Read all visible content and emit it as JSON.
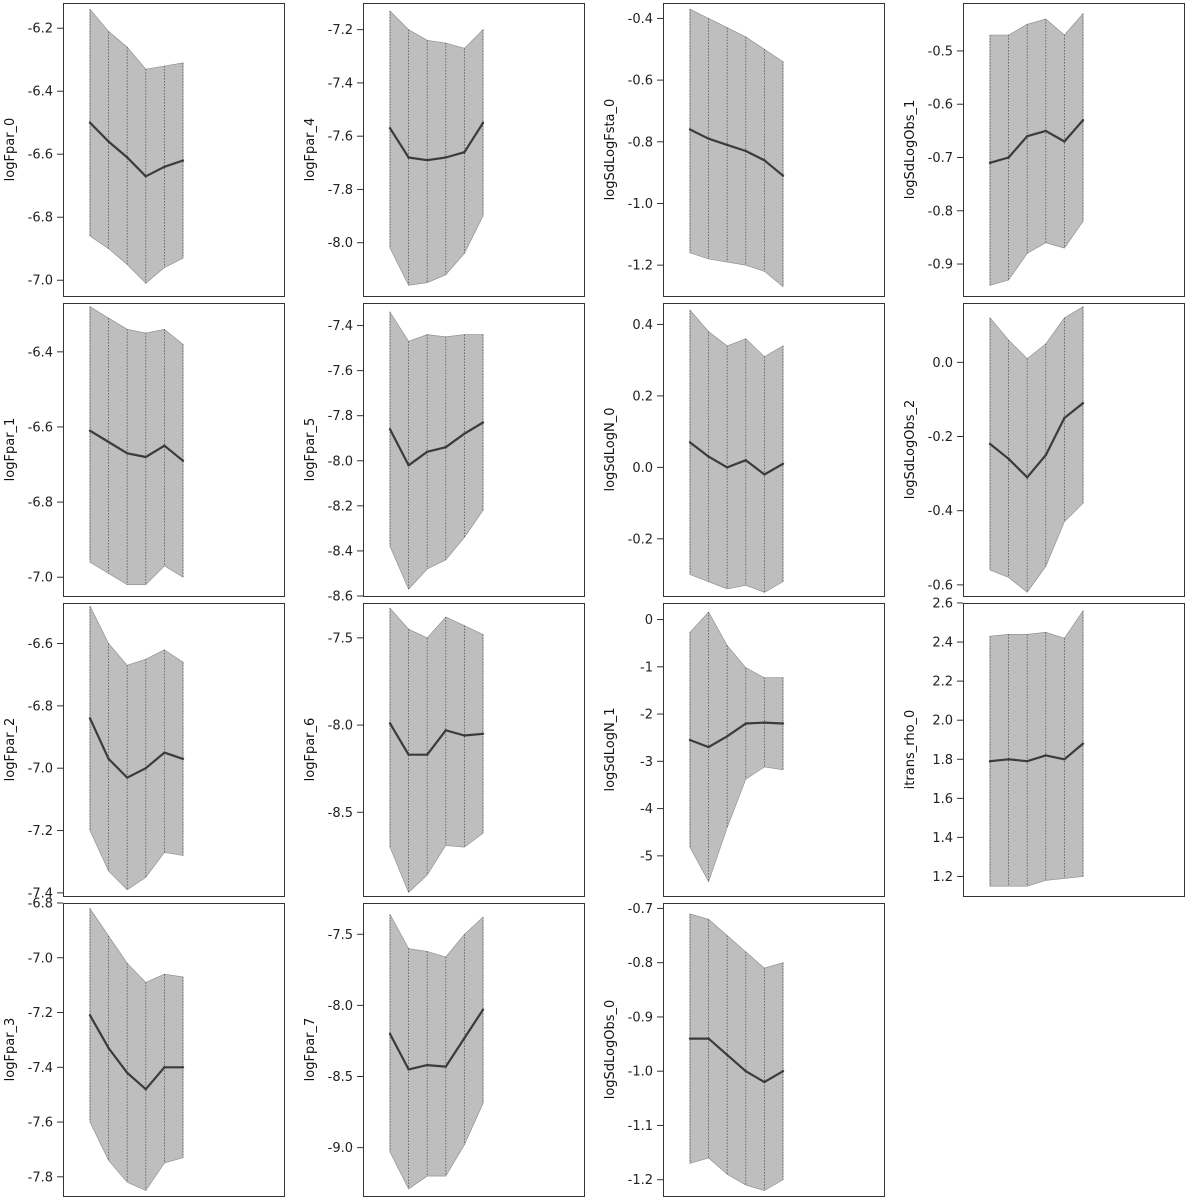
{
  "chart_data": [
    {
      "type": "area",
      "ylabel": "logFpar_0",
      "ylim": [
        -7.05,
        -6.12
      ],
      "yticks": [
        -6.2,
        -6.4,
        -6.6,
        -6.8,
        -7.0
      ],
      "tick_labels": [
        "-6.2",
        "-6.4",
        "-6.6",
        "-6.8",
        "-7.0"
      ],
      "series": [
        {
          "values": [
            -6.5,
            -6.56,
            -6.61,
            -6.67,
            -6.64,
            -6.62
          ]
        },
        {
          "values": [
            -6.14,
            -6.21,
            -6.26,
            -6.33,
            -6.32,
            -6.31
          ]
        },
        {
          "values": [
            -6.86,
            -6.9,
            -6.95,
            -7.01,
            -6.96,
            -6.93
          ]
        }
      ]
    },
    {
      "type": "area",
      "ylabel": "logFpar_1",
      "ylim": [
        -7.05,
        -6.27
      ],
      "yticks": [
        -6.4,
        -6.6,
        -6.8,
        -7.0
      ],
      "tick_labels": [
        "-6.4",
        "-6.6",
        "-6.8",
        "-7.0"
      ],
      "series": [
        {
          "values": [
            -6.61,
            -6.64,
            -6.67,
            -6.68,
            -6.65,
            -6.69
          ]
        },
        {
          "values": [
            -6.28,
            -6.31,
            -6.34,
            -6.35,
            -6.34,
            -6.38
          ]
        },
        {
          "values": [
            -6.96,
            -6.99,
            -7.02,
            -7.02,
            -6.97,
            -7.0
          ]
        }
      ]
    },
    {
      "type": "area",
      "ylabel": "logFpar_2",
      "ylim": [
        -7.41,
        -6.47
      ],
      "yticks": [
        -6.6,
        -6.8,
        -7.0,
        -7.2,
        -7.4
      ],
      "tick_labels": [
        "-6.6",
        "-6.8",
        "-7.0",
        "-7.2",
        "-7.4"
      ],
      "series": [
        {
          "values": [
            -6.84,
            -6.97,
            -7.03,
            -7.0,
            -6.95,
            -6.97
          ]
        },
        {
          "values": [
            -6.48,
            -6.6,
            -6.67,
            -6.65,
            -6.62,
            -6.66
          ]
        },
        {
          "values": [
            -7.2,
            -7.33,
            -7.39,
            -7.35,
            -7.27,
            -7.28
          ]
        }
      ]
    },
    {
      "type": "area",
      "ylabel": "logFpar_3",
      "ylim": [
        -7.87,
        -6.8
      ],
      "yticks": [
        -6.8,
        -7.0,
        -7.2,
        -7.4,
        -7.6,
        -7.8
      ],
      "tick_labels": [
        "-6.8",
        "-7.0",
        "-7.2",
        "-7.4",
        "-7.6",
        "-7.8"
      ],
      "series": [
        {
          "values": [
            -7.21,
            -7.33,
            -7.42,
            -7.48,
            -7.4,
            -7.4
          ]
        },
        {
          "values": [
            -6.82,
            -6.92,
            -7.02,
            -7.09,
            -7.06,
            -7.07
          ]
        },
        {
          "values": [
            -7.6,
            -7.74,
            -7.82,
            -7.85,
            -7.75,
            -7.73
          ]
        }
      ]
    },
    {
      "type": "area",
      "ylabel": "logFpar_4",
      "ylim": [
        -8.2,
        -7.1
      ],
      "yticks": [
        -7.2,
        -7.4,
        -7.6,
        -7.8,
        -8.0
      ],
      "tick_labels": [
        "-7.2",
        "-7.4",
        "-7.6",
        "-7.8",
        "-8.0"
      ],
      "series": [
        {
          "values": [
            -7.57,
            -7.68,
            -7.69,
            -7.68,
            -7.66,
            -7.55
          ]
        },
        {
          "values": [
            -7.13,
            -7.2,
            -7.24,
            -7.25,
            -7.27,
            -7.2
          ]
        },
        {
          "values": [
            -8.02,
            -8.16,
            -8.15,
            -8.12,
            -8.04,
            -7.9
          ]
        }
      ]
    },
    {
      "type": "area",
      "ylabel": "logFpar_5",
      "ylim": [
        -8.6,
        -7.3
      ],
      "yticks": [
        -7.4,
        -7.6,
        -7.8,
        -8.0,
        -8.2,
        -8.4,
        -8.6
      ],
      "tick_labels": [
        "-7.4",
        "-7.6",
        "-7.8",
        "-8.0",
        "-8.2",
        "-8.4",
        "-8.6"
      ],
      "series": [
        {
          "values": [
            -7.86,
            -8.02,
            -7.96,
            -7.94,
            -7.88,
            -7.83
          ]
        },
        {
          "values": [
            -7.34,
            -7.47,
            -7.44,
            -7.45,
            -7.44,
            -7.44
          ]
        },
        {
          "values": [
            -8.38,
            -8.57,
            -8.48,
            -8.44,
            -8.34,
            -8.22
          ]
        }
      ]
    },
    {
      "type": "area",
      "ylabel": "logFpar_6",
      "ylim": [
        -8.98,
        -7.3
      ],
      "yticks": [
        -7.5,
        -8.0,
        -8.5
      ],
      "tick_labels": [
        "-7.5",
        "-8.0",
        "-8.5"
      ],
      "series": [
        {
          "values": [
            -7.99,
            -8.17,
            -8.17,
            -8.03,
            -8.06,
            -8.05
          ]
        },
        {
          "values": [
            -7.33,
            -7.45,
            -7.5,
            -7.38,
            -7.43,
            -7.48
          ]
        },
        {
          "values": [
            -8.7,
            -8.96,
            -8.86,
            -8.69,
            -8.7,
            -8.62
          ]
        }
      ]
    },
    {
      "type": "area",
      "ylabel": "logFpar_7",
      "ylim": [
        -9.34,
        -7.28
      ],
      "yticks": [
        -7.5,
        -8.0,
        -8.5,
        -9.0
      ],
      "tick_labels": [
        "-7.5",
        "-8.0",
        "-8.5",
        "-9.0"
      ],
      "series": [
        {
          "values": [
            -8.2,
            -8.45,
            -8.42,
            -8.43,
            -8.23,
            -8.03
          ]
        },
        {
          "values": [
            -7.36,
            -7.6,
            -7.62,
            -7.66,
            -7.5,
            -7.38
          ]
        },
        {
          "values": [
            -9.03,
            -9.29,
            -9.2,
            -9.2,
            -8.98,
            -8.69
          ]
        }
      ]
    },
    {
      "type": "area",
      "ylabel": "logSdLogFsta_0",
      "ylim": [
        -1.3,
        -0.35
      ],
      "yticks": [
        -0.4,
        -0.6,
        -0.8,
        -1.0,
        -1.2
      ],
      "tick_labels": [
        "-0.4",
        "-0.6",
        "-0.8",
        "-1.0",
        "-1.2"
      ],
      "series": [
        {
          "values": [
            -0.76,
            -0.79,
            -0.81,
            -0.83,
            -0.86,
            -0.91
          ]
        },
        {
          "values": [
            -0.37,
            -0.4,
            -0.43,
            -0.46,
            -0.5,
            -0.54
          ]
        },
        {
          "values": [
            -1.16,
            -1.18,
            -1.19,
            -1.2,
            -1.22,
            -1.27
          ]
        }
      ]
    },
    {
      "type": "area",
      "ylabel": "logSdLogN_0",
      "ylim": [
        -0.36,
        0.46
      ],
      "yticks": [
        0.4,
        0.2,
        0.0,
        -0.2
      ],
      "tick_labels": [
        "0.4",
        "0.2",
        "0.0",
        "-0.2"
      ],
      "series": [
        {
          "values": [
            0.07,
            0.03,
            0.0,
            0.02,
            -0.02,
            0.01
          ]
        },
        {
          "values": [
            0.44,
            0.38,
            0.34,
            0.36,
            0.31,
            0.34
          ]
        },
        {
          "values": [
            -0.3,
            -0.32,
            -0.34,
            -0.33,
            -0.35,
            -0.32
          ]
        }
      ]
    },
    {
      "type": "area",
      "ylabel": "logSdLogN_1",
      "ylim": [
        -5.85,
        0.35
      ],
      "yticks": [
        0,
        -1,
        -2,
        -3,
        -4,
        -5
      ],
      "tick_labels": [
        "0",
        "-1",
        "-2",
        "-3",
        "-4",
        "-5"
      ],
      "series": [
        {
          "values": [
            -2.55,
            -2.7,
            -2.47,
            -2.2,
            -2.18,
            -2.2
          ]
        },
        {
          "values": [
            -0.27,
            0.16,
            -0.55,
            -1.02,
            -1.23,
            -1.23
          ]
        },
        {
          "values": [
            -4.82,
            -5.55,
            -4.4,
            -3.38,
            -3.12,
            -3.18
          ]
        }
      ]
    },
    {
      "type": "area",
      "ylabel": "logSdLogObs_0",
      "ylim": [
        -1.23,
        -0.69
      ],
      "yticks": [
        -0.7,
        -0.8,
        -0.9,
        -1.0,
        -1.1,
        -1.2
      ],
      "tick_labels": [
        "-0.7",
        "-0.8",
        "-0.9",
        "-1.0",
        "-1.1",
        "-1.2"
      ],
      "series": [
        {
          "values": [
            -0.94,
            -0.94,
            -0.97,
            -1.0,
            -1.02,
            -1.0
          ]
        },
        {
          "values": [
            -0.71,
            -0.72,
            -0.75,
            -0.78,
            -0.81,
            -0.8
          ]
        },
        {
          "values": [
            -1.17,
            -1.16,
            -1.19,
            -1.21,
            -1.22,
            -1.2
          ]
        }
      ]
    },
    {
      "type": "area",
      "ylabel": "logSdLogObs_1",
      "ylim": [
        -0.96,
        -0.41
      ],
      "yticks": [
        -0.5,
        -0.6,
        -0.7,
        -0.8,
        -0.9
      ],
      "tick_labels": [
        "-0.5",
        "-0.6",
        "-0.7",
        "-0.8",
        "-0.9"
      ],
      "series": [
        {
          "values": [
            -0.71,
            -0.7,
            -0.66,
            -0.65,
            -0.67,
            -0.63
          ]
        },
        {
          "values": [
            -0.47,
            -0.47,
            -0.45,
            -0.44,
            -0.47,
            -0.43
          ]
        },
        {
          "values": [
            -0.94,
            -0.93,
            -0.88,
            -0.86,
            -0.87,
            -0.82
          ]
        }
      ]
    },
    {
      "type": "area",
      "ylabel": "logSdLogObs_2",
      "ylim": [
        -0.63,
        0.16
      ],
      "yticks": [
        0.0,
        -0.2,
        -0.4,
        -0.6
      ],
      "tick_labels": [
        "0.0",
        "-0.2",
        "-0.4",
        "-0.6"
      ],
      "series": [
        {
          "values": [
            -0.22,
            -0.26,
            -0.31,
            -0.25,
            -0.15,
            -0.11
          ]
        },
        {
          "values": [
            0.12,
            0.06,
            0.01,
            0.05,
            0.12,
            0.15
          ]
        },
        {
          "values": [
            -0.56,
            -0.58,
            -0.62,
            -0.55,
            -0.43,
            -0.38
          ]
        }
      ]
    },
    {
      "type": "area",
      "ylabel": "itrans_rho_0",
      "ylim": [
        1.1,
        2.6
      ],
      "yticks": [
        2.6,
        2.4,
        2.2,
        2.0,
        1.8,
        1.6,
        1.4,
        1.2
      ],
      "tick_labels": [
        "2.6",
        "2.4",
        "2.2",
        "2.0",
        "1.8",
        "1.6",
        "1.4",
        "1.2"
      ],
      "series": [
        {
          "values": [
            1.79,
            1.8,
            1.79,
            1.82,
            1.8,
            1.88
          ]
        },
        {
          "values": [
            2.43,
            2.44,
            2.44,
            2.45,
            2.42,
            2.56
          ]
        },
        {
          "values": [
            1.15,
            1.15,
            1.15,
            1.18,
            1.19,
            1.2
          ]
        }
      ]
    }
  ]
}
